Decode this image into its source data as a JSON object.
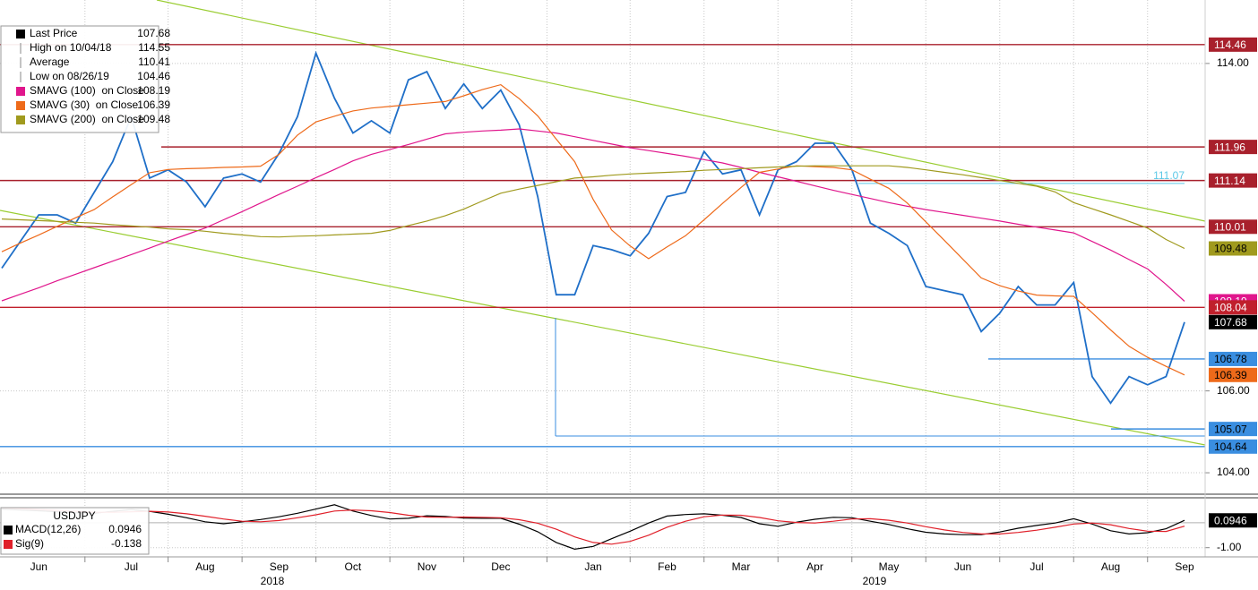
{
  "chart_data": [
    {
      "type": "line",
      "categories": [
        null,
        null,
        "Jun",
        null,
        null,
        null,
        null,
        "Jul",
        null,
        null,
        null,
        "Aug",
        null,
        null,
        null,
        "Sep",
        null,
        null,
        null,
        "Oct",
        null,
        null,
        null,
        "Nov",
        null,
        null,
        null,
        "Dec",
        null,
        null,
        null,
        null,
        "Jan",
        null,
        null,
        null,
        "Feb",
        null,
        null,
        null,
        "Mar",
        null,
        null,
        null,
        "Apr",
        null,
        null,
        null,
        "May",
        null,
        null,
        null,
        "Jun",
        null,
        null,
        null,
        "Jul",
        null,
        null,
        null,
        "Aug",
        null,
        null,
        null,
        "Sep"
      ],
      "x_group_labels": [
        "2018",
        "2019"
      ],
      "series": [
        {
          "name": "Last Price",
          "color": "#1f6fc8",
          "legend_color": "#000000",
          "legend_value": 107.68,
          "values": [
            109.0,
            109.65,
            110.3,
            110.3,
            110.1,
            110.85,
            111.6,
            112.7,
            111.2,
            111.4,
            111.1,
            110.5,
            111.2,
            111.3,
            111.1,
            111.8,
            112.7,
            114.25,
            113.15,
            112.3,
            112.6,
            112.3,
            113.6,
            113.8,
            112.9,
            113.5,
            112.9,
            113.35,
            112.5,
            110.75,
            108.35,
            108.35,
            109.55,
            109.45,
            109.3,
            109.85,
            110.75,
            110.85,
            111.85,
            111.3,
            111.4,
            110.3,
            111.4,
            111.6,
            112.05,
            112.05,
            111.4,
            110.1,
            109.85,
            109.55,
            108.55,
            108.45,
            108.35,
            107.45,
            107.9,
            108.55,
            108.1,
            108.1,
            108.65,
            106.35,
            105.7,
            106.35,
            106.15,
            106.35,
            107.68
          ]
        },
        {
          "name": "SMAVG (100)  on Close",
          "color": "#e0168c",
          "legend_value": 108.19,
          "values": [
            108.2,
            108.36,
            108.52,
            108.69,
            108.85,
            109.01,
            109.17,
            109.33,
            109.49,
            109.66,
            109.82,
            109.98,
            110.18,
            110.38,
            110.59,
            110.8,
            111.0,
            111.21,
            111.41,
            111.62,
            111.78,
            111.9,
            112.02,
            112.15,
            112.28,
            112.32,
            112.35,
            112.37,
            112.4,
            112.35,
            112.3,
            112.21,
            112.12,
            112.03,
            111.94,
            111.87,
            111.8,
            111.73,
            111.65,
            111.57,
            111.46,
            111.34,
            111.23,
            111.12,
            111.01,
            110.9,
            110.8,
            110.7,
            110.6,
            110.51,
            110.43,
            110.36,
            110.29,
            110.22,
            110.15,
            110.07,
            110.0,
            109.93,
            109.86,
            109.65,
            109.44,
            109.21,
            108.98,
            108.6,
            108.19
          ]
        },
        {
          "name": "SMAVG (30)  on Close",
          "color": "#ee6a1a",
          "legend_value": 106.39,
          "values": [
            109.4,
            109.61,
            109.81,
            110.02,
            110.23,
            110.43,
            110.74,
            111.04,
            111.33,
            111.41,
            111.43,
            111.44,
            111.46,
            111.47,
            111.49,
            111.78,
            112.25,
            112.57,
            112.71,
            112.84,
            112.91,
            112.95,
            112.99,
            113.03,
            113.07,
            113.21,
            113.36,
            113.48,
            113.14,
            112.72,
            112.15,
            111.6,
            110.68,
            109.93,
            109.54,
            109.23,
            109.52,
            109.79,
            110.18,
            110.58,
            110.97,
            111.34,
            111.42,
            111.5,
            111.48,
            111.46,
            111.4,
            111.17,
            110.95,
            110.59,
            110.13,
            109.68,
            109.22,
            108.76,
            108.57,
            108.44,
            108.34,
            108.32,
            108.31,
            107.91,
            107.49,
            107.09,
            106.82,
            106.6,
            106.39
          ]
        },
        {
          "name": "SMAVG (200)  on Close",
          "color": "#a09a1e",
          "legend_value": 109.48,
          "values": [
            110.2,
            110.18,
            110.16,
            110.14,
            110.12,
            110.1,
            110.06,
            110.03,
            110.0,
            109.96,
            109.94,
            109.9,
            109.85,
            109.81,
            109.77,
            109.76,
            109.78,
            109.79,
            109.81,
            109.83,
            109.85,
            109.92,
            110.04,
            110.15,
            110.28,
            110.44,
            110.64,
            110.83,
            110.93,
            111.02,
            111.11,
            111.2,
            111.23,
            111.27,
            111.3,
            111.32,
            111.34,
            111.36,
            111.39,
            111.41,
            111.43,
            111.45,
            111.47,
            111.49,
            111.5,
            111.5,
            111.5,
            111.5,
            111.5,
            111.46,
            111.4,
            111.34,
            111.28,
            111.21,
            111.14,
            111.07,
            111.0,
            110.86,
            110.6,
            110.45,
            110.3,
            110.14,
            109.98,
            109.7,
            109.48
          ]
        }
      ],
      "stats": [
        {
          "name": "High on 10/04/18",
          "value": 114.55
        },
        {
          "name": "Average",
          "value": 110.41
        },
        {
          "name": "Low on 08/26/19",
          "value": 104.46
        }
      ],
      "ylim": [
        103.52,
        115.55
      ],
      "yticks": [
        {
          "value": 104,
          "label": "104.00"
        },
        {
          "value": 106,
          "label": "106.00"
        },
        {
          "value": 114,
          "label": "114.00"
        }
      ],
      "grid": true,
      "tags": [
        {
          "value": 114.46,
          "color": "#a8202c",
          "text_color": "#ffffff"
        },
        {
          "value": 111.96,
          "color": "#a8202c",
          "text_color": "#ffffff"
        },
        {
          "value": 111.14,
          "color": "#a8202c",
          "text_color": "#ffffff"
        },
        {
          "value": 110.01,
          "color": "#a8202c",
          "text_color": "#ffffff"
        },
        {
          "value": 109.48,
          "color": "#a09a1e",
          "text_color": "#000000"
        },
        {
          "value": 108.19,
          "color": "#e0168c",
          "text_color": "#ffffff"
        },
        {
          "value": 108.04,
          "color": "#c0202c",
          "text_color": "#ffffff"
        },
        {
          "value": 107.68,
          "color": "#000000",
          "text_color": "#ffffff"
        },
        {
          "value": 106.78,
          "color": "#3a8ee0",
          "text_color": "#000000"
        },
        {
          "value": 106.39,
          "color": "#ee6a1a",
          "text_color": "#000000"
        },
        {
          "value": 105.07,
          "color": "#3a8ee0",
          "text_color": "#000000"
        },
        {
          "value": 104.64,
          "color": "#3a8ee0",
          "text_color": "#000000"
        }
      ],
      "annotations": [
        {
          "value": 111.07,
          "color": "#5cc8e6"
        }
      ]
    },
    {
      "type": "line",
      "title": "USDJPY",
      "series": [
        {
          "name": "MACD(12,26)",
          "color": "#000000",
          "legend_value": 0.0946,
          "values": [
            0.55,
            0.51,
            0.48,
            0.44,
            0.4,
            0.38,
            0.46,
            0.53,
            0.46,
            0.34,
            0.2,
            0.04,
            -0.04,
            0.04,
            0.13,
            0.24,
            0.38,
            0.55,
            0.72,
            0.47,
            0.29,
            0.15,
            0.18,
            0.28,
            0.25,
            0.19,
            0.18,
            0.18,
            -0.06,
            -0.36,
            -0.79,
            -1.06,
            -0.95,
            -0.64,
            -0.34,
            -0.01,
            0.27,
            0.33,
            0.36,
            0.3,
            0.21,
            -0.04,
            -0.14,
            0.02,
            0.14,
            0.22,
            0.2,
            0.06,
            -0.07,
            -0.24,
            -0.38,
            -0.45,
            -0.48,
            -0.48,
            -0.37,
            -0.22,
            -0.11,
            -0.01,
            0.16,
            -0.05,
            -0.32,
            -0.45,
            -0.4,
            -0.24,
            0.0946
          ]
        },
        {
          "name": "Sig(9)",
          "color": "#e0202a",
          "legend_value": -0.138,
          "values": [
            0.6,
            0.57,
            0.53,
            0.5,
            0.46,
            0.42,
            0.42,
            0.44,
            0.46,
            0.43,
            0.36,
            0.26,
            0.15,
            0.06,
            0.04,
            0.09,
            0.2,
            0.32,
            0.47,
            0.51,
            0.48,
            0.41,
            0.3,
            0.23,
            0.22,
            0.23,
            0.22,
            0.2,
            0.12,
            -0.02,
            -0.26,
            -0.57,
            -0.79,
            -0.86,
            -0.75,
            -0.5,
            -0.18,
            0.06,
            0.24,
            0.31,
            0.3,
            0.21,
            0.08,
            0.01,
            -0.01,
            0.06,
            0.15,
            0.16,
            0.1,
            -0.01,
            -0.16,
            -0.29,
            -0.39,
            -0.45,
            -0.45,
            -0.39,
            -0.3,
            -0.18,
            -0.05,
            -0.01,
            -0.08,
            -0.23,
            -0.34,
            -0.35,
            -0.138
          ]
        }
      ],
      "ylim": [
        -1.37,
        0.93
      ],
      "yticks": [
        {
          "value": -1,
          "label": "-1.00"
        }
      ],
      "tags": [
        {
          "value": 0.0946,
          "color": "#000000",
          "text_color": "#ffffff"
        }
      ]
    }
  ]
}
